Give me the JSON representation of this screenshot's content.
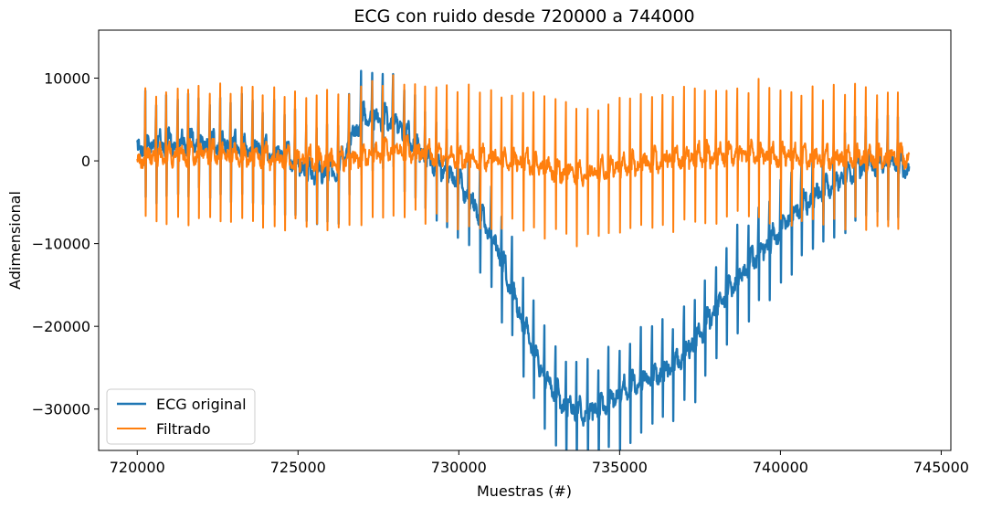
{
  "chart_data": {
    "type": "line",
    "title": "ECG con ruido desde 720000 a 744000",
    "xlabel": "Muestras (#)",
    "ylabel": "Adimensional",
    "xlim": [
      718800,
      745300
    ],
    "ylim": [
      -35000,
      15800
    ],
    "xticks": [
      720000,
      725000,
      730000,
      735000,
      740000,
      745000
    ],
    "yticks": [
      10000,
      0,
      -10000,
      -20000,
      -30000
    ],
    "xtick_labels": [
      "720000",
      "725000",
      "730000",
      "735000",
      "740000",
      "745000"
    ],
    "ytick_labels": [
      "10000",
      "0",
      "−10000",
      "−20000",
      "−30000"
    ],
    "grid": false,
    "legend_position": "lower-left",
    "series": [
      {
        "name": "ECG original",
        "color": "#1f77b4",
        "x_start": 720000,
        "x_end": 744000,
        "baseline": [
          [
            720000,
            1500
          ],
          [
            721500,
            1800
          ],
          [
            723000,
            1600
          ],
          [
            724500,
            500
          ],
          [
            725500,
            -2000
          ],
          [
            726200,
            -1500
          ],
          [
            727000,
            5000
          ],
          [
            728000,
            4500
          ],
          [
            729000,
            0
          ],
          [
            730000,
            -3000
          ],
          [
            730700,
            -7000
          ],
          [
            731300,
            -12000
          ],
          [
            732000,
            -20000
          ],
          [
            732600,
            -26000
          ],
          [
            733300,
            -30000
          ],
          [
            734000,
            -31000
          ],
          [
            734800,
            -29000
          ],
          [
            735600,
            -27000
          ],
          [
            736600,
            -25500
          ],
          [
            737400,
            -22000
          ],
          [
            738200,
            -17000
          ],
          [
            739000,
            -13000
          ],
          [
            739800,
            -9500
          ],
          [
            740600,
            -6000
          ],
          [
            741500,
            -3500
          ],
          [
            742500,
            -1000
          ],
          [
            743500,
            -500
          ],
          [
            744000,
            -1500
          ]
        ],
        "beats": [
          720250,
          720580,
          720900,
          721250,
          721580,
          721900,
          722250,
          722580,
          722900,
          723250,
          723580,
          723900,
          724250,
          724580,
          724900,
          725250,
          725580,
          725900,
          726250,
          726580,
          726950,
          727300,
          727630,
          727950,
          728300,
          728630,
          728950,
          729300,
          729620,
          729950,
          730300,
          730650,
          731000,
          731320,
          731650,
          732000,
          732320,
          732650,
          733000,
          733330,
          733650,
          734000,
          734330,
          734650,
          735000,
          735320,
          735650,
          736000,
          736330,
          736650,
          737000,
          737330,
          737650,
          738000,
          738320,
          738650,
          739000,
          739320,
          739650,
          740000,
          740330,
          740650,
          741000,
          741320,
          741650,
          742000,
          742320,
          742650,
          743000,
          743330,
          743650
        ],
        "r_amplitude": 6000,
        "s_amplitude": -6000
      },
      {
        "name": "Filtrado",
        "color": "#ff7f0e",
        "x_start": 720000,
        "x_end": 744000,
        "baseline": [
          [
            720000,
            0
          ],
          [
            722000,
            500
          ],
          [
            724000,
            0
          ],
          [
            726000,
            -500
          ],
          [
            728000,
            1000
          ],
          [
            730000,
            0
          ],
          [
            732000,
            -500
          ],
          [
            733000,
            -1500
          ],
          [
            734000,
            -2000
          ],
          [
            735000,
            -1000
          ],
          [
            737000,
            0
          ],
          [
            739000,
            500
          ],
          [
            741000,
            0
          ],
          [
            743000,
            0
          ],
          [
            744000,
            0
          ]
        ],
        "beats": [
          720250,
          720580,
          720900,
          721250,
          721580,
          721900,
          722250,
          722580,
          722900,
          723250,
          723580,
          723900,
          724250,
          724580,
          724900,
          725250,
          725580,
          725900,
          726250,
          726580,
          726950,
          727300,
          727630,
          727950,
          728300,
          728630,
          728950,
          729300,
          729620,
          729950,
          730300,
          730650,
          731000,
          731320,
          731650,
          732000,
          732320,
          732650,
          733000,
          733330,
          733650,
          734000,
          734330,
          734650,
          735000,
          735320,
          735650,
          736000,
          736330,
          736650,
          737000,
          737330,
          737650,
          738000,
          738320,
          738650,
          739000,
          739320,
          739650,
          740000,
          740330,
          740650,
          741000,
          741320,
          741650,
          742000,
          742320,
          742650,
          743000,
          743330,
          743650
        ],
        "r_amplitude": 8500,
        "s_amplitude": -7500
      }
    ]
  }
}
